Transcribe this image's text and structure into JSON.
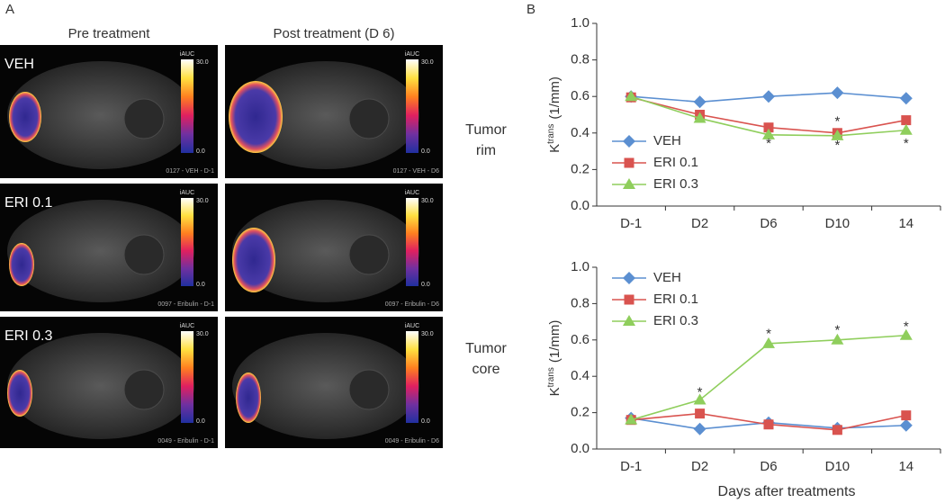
{
  "panel_labels": [
    "A",
    "B"
  ],
  "panel_a": {
    "columns": [
      "Pre treatment",
      "Post treatment (D 6)"
    ],
    "rows": [
      "VEH",
      "ERI 0.1",
      "ERI 0.3"
    ],
    "side_labels": [
      [
        "Tumor",
        "rim"
      ],
      [
        "Tumor",
        "core"
      ]
    ],
    "colorbar": {
      "label": "iAUC",
      "max": "30.0",
      "min": "0.0"
    },
    "captions": [
      [
        "0127 - VEH - D-1",
        "0127 - VEH - D6"
      ],
      [
        "0097 - Eribulin - D-1",
        "0097 - Eribulin - D6"
      ],
      [
        "0049 - Eribulin - D-1",
        "0049 - Eribulin - D6"
      ]
    ]
  },
  "chart_data": [
    {
      "type": "line",
      "categories": [
        "D-1",
        "D2",
        "D6",
        "D10",
        "14"
      ],
      "ylabel": "K",
      "ylabel_sup": "trans",
      "ylabel_unit": "(1/mm)",
      "ylim": [
        0,
        1
      ],
      "yticks": [
        {
          "value": 0,
          "label": "0.0"
        },
        0.2,
        0.4,
        0.6,
        0.8,
        {
          "value": 1,
          "label": "1.0"
        }
      ],
      "legend": "lower left",
      "series": [
        {
          "name": "VEH",
          "color": "#5b8fd1",
          "marker": "diamond",
          "values": [
            0.6,
            0.57,
            0.6,
            0.62,
            0.59
          ]
        },
        {
          "name": "ERI 0.1",
          "color": "#d9534f",
          "marker": "square",
          "values": [
            0.595,
            0.5,
            0.43,
            0.4,
            0.47
          ]
        },
        {
          "name": "ERI 0.3",
          "color": "#8fce5c",
          "marker": "triangle",
          "values": [
            0.6,
            0.48,
            0.39,
            0.385,
            0.415
          ]
        }
      ],
      "annotations": [
        {
          "text": "*",
          "category": 2,
          "y": 0.34
        },
        {
          "text": "*",
          "category": 3,
          "y": 0.46
        },
        {
          "text": "*",
          "category": 3,
          "y": 0.33
        },
        {
          "text": "*",
          "category": 4,
          "y": 0.34
        }
      ]
    },
    {
      "type": "line",
      "categories": [
        "D-1",
        "D2",
        "D6",
        "D10",
        "14"
      ],
      "ylabel": "K",
      "ylabel_sup": "trans",
      "ylabel_unit": "(1/mm)",
      "xlabel": "Days after treatments",
      "ylim": [
        0,
        1
      ],
      "yticks": [
        {
          "value": 0,
          "label": "0.0"
        },
        0.2,
        0.4,
        0.6,
        0.8,
        {
          "value": 1,
          "label": "1.0"
        }
      ],
      "legend": "upper left",
      "series": [
        {
          "name": "VEH",
          "color": "#5b8fd1",
          "marker": "diamond",
          "values": [
            0.17,
            0.11,
            0.145,
            0.115,
            0.13
          ]
        },
        {
          "name": "ERI 0.1",
          "color": "#d9534f",
          "marker": "square",
          "values": [
            0.16,
            0.195,
            0.135,
            0.105,
            0.185
          ]
        },
        {
          "name": "ERI 0.3",
          "color": "#8fce5c",
          "marker": "triangle",
          "values": [
            0.16,
            0.27,
            0.58,
            0.6,
            0.625
          ]
        }
      ],
      "annotations": [
        {
          "text": "*",
          "category": 1,
          "y": 0.31
        },
        {
          "text": "*",
          "category": 2,
          "y": 0.63
        },
        {
          "text": "*",
          "category": 3,
          "y": 0.65
        },
        {
          "text": "*",
          "category": 4,
          "y": 0.67
        }
      ]
    }
  ]
}
